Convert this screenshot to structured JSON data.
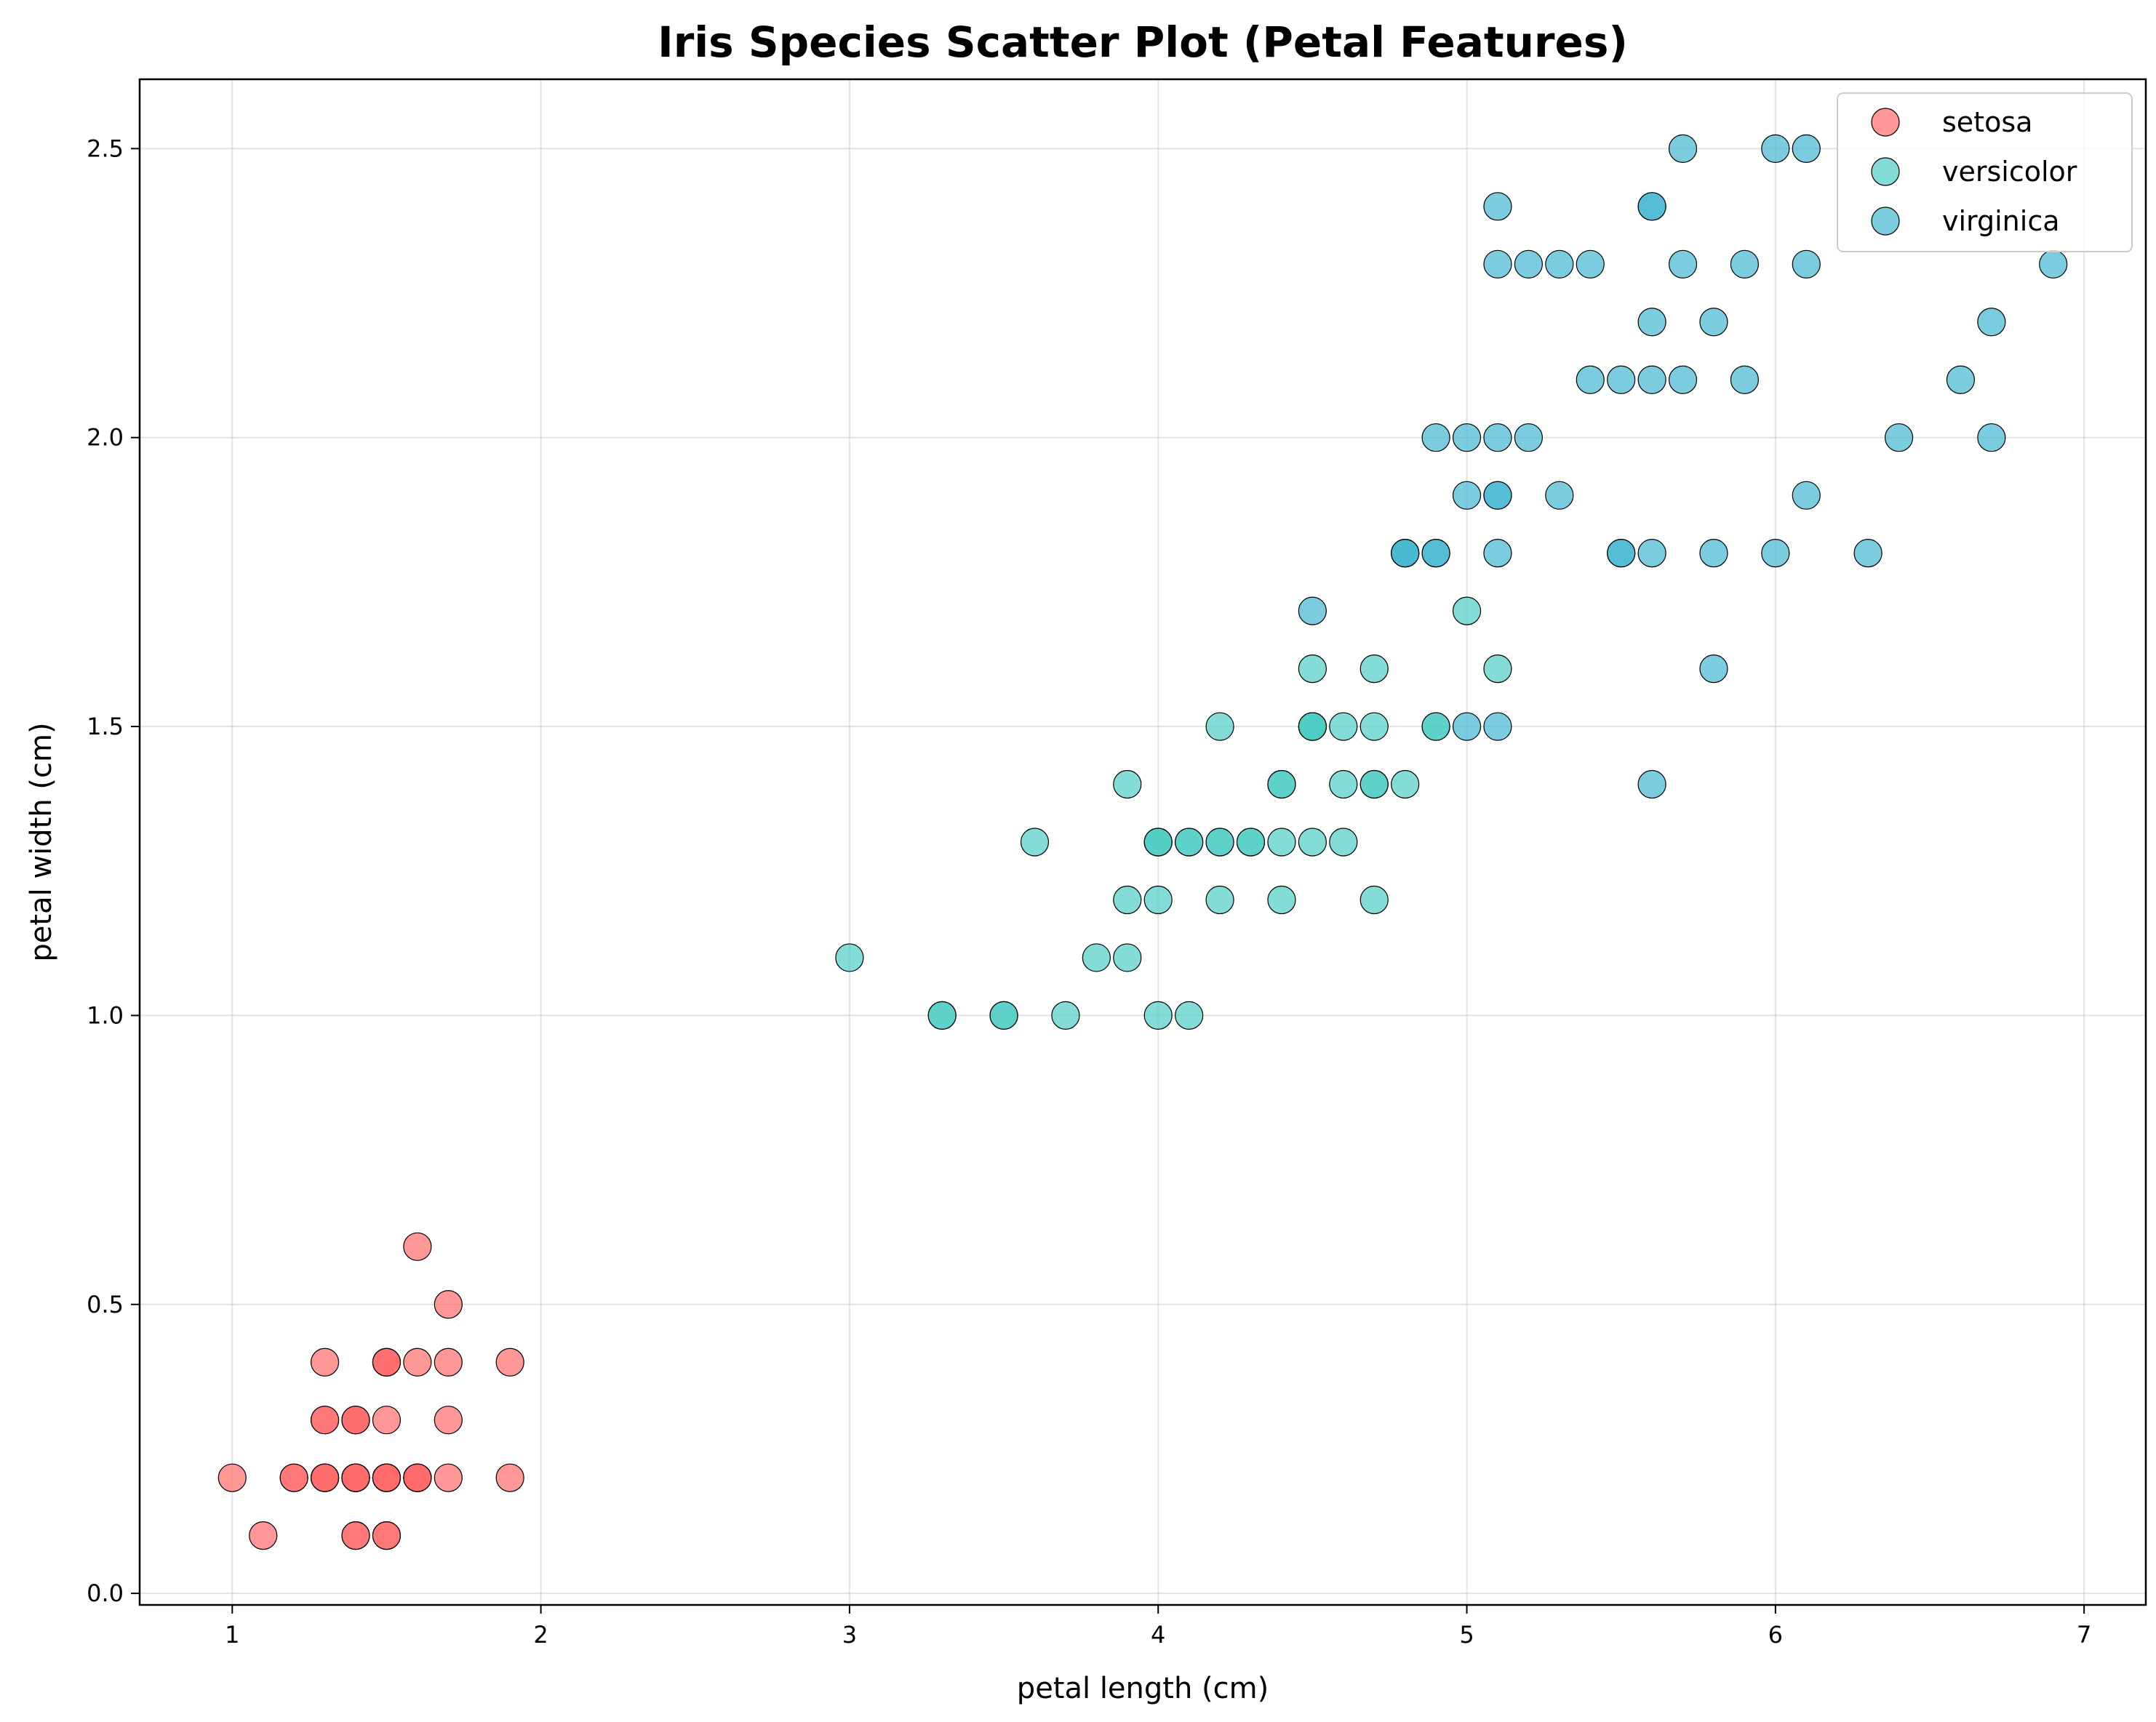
{
  "chart_data": {
    "type": "scatter",
    "title": "Iris Species Scatter Plot (Petal Features)",
    "xlabel": "petal length (cm)",
    "ylabel": "petal width (cm)",
    "xlim": [
      0.7,
      7.2
    ],
    "ylim": [
      -0.02,
      2.62
    ],
    "xticks": [
      1,
      2,
      3,
      4,
      5,
      6,
      7
    ],
    "xtick_labels": [
      "1",
      "2",
      "3",
      "4",
      "5",
      "6",
      "7"
    ],
    "yticks": [
      0.0,
      0.5,
      1.0,
      1.5,
      2.0,
      2.5
    ],
    "ytick_labels": [
      "0.0",
      "0.5",
      "1.0",
      "1.5",
      "2.0",
      "2.5"
    ],
    "grid": true,
    "legend_position": "top-right",
    "series": [
      {
        "name": "setosa",
        "color": "#ff6b6b",
        "points": [
          [
            1.4,
            0.2
          ],
          [
            1.4,
            0.2
          ],
          [
            1.3,
            0.2
          ],
          [
            1.5,
            0.2
          ],
          [
            1.4,
            0.2
          ],
          [
            1.7,
            0.4
          ],
          [
            1.4,
            0.3
          ],
          [
            1.5,
            0.2
          ],
          [
            1.4,
            0.2
          ],
          [
            1.5,
            0.1
          ],
          [
            1.5,
            0.2
          ],
          [
            1.6,
            0.2
          ],
          [
            1.4,
            0.1
          ],
          [
            1.1,
            0.1
          ],
          [
            1.2,
            0.2
          ],
          [
            1.5,
            0.4
          ],
          [
            1.3,
            0.4
          ],
          [
            1.4,
            0.3
          ],
          [
            1.7,
            0.3
          ],
          [
            1.5,
            0.3
          ],
          [
            1.7,
            0.2
          ],
          [
            1.5,
            0.4
          ],
          [
            1.0,
            0.2
          ],
          [
            1.7,
            0.5
          ],
          [
            1.9,
            0.2
          ],
          [
            1.6,
            0.2
          ],
          [
            1.6,
            0.4
          ],
          [
            1.5,
            0.2
          ],
          [
            1.4,
            0.2
          ],
          [
            1.6,
            0.2
          ],
          [
            1.6,
            0.2
          ],
          [
            1.5,
            0.4
          ],
          [
            1.5,
            0.1
          ],
          [
            1.4,
            0.2
          ],
          [
            1.5,
            0.2
          ],
          [
            1.2,
            0.2
          ],
          [
            1.3,
            0.2
          ],
          [
            1.4,
            0.1
          ],
          [
            1.3,
            0.2
          ],
          [
            1.5,
            0.2
          ],
          [
            1.3,
            0.3
          ],
          [
            1.3,
            0.3
          ],
          [
            1.3,
            0.2
          ],
          [
            1.6,
            0.6
          ],
          [
            1.9,
            0.4
          ],
          [
            1.4,
            0.3
          ],
          [
            1.6,
            0.2
          ],
          [
            1.4,
            0.2
          ],
          [
            1.5,
            0.2
          ],
          [
            1.4,
            0.2
          ]
        ]
      },
      {
        "name": "versicolor",
        "color": "#4ecdc4",
        "points": [
          [
            4.7,
            1.4
          ],
          [
            4.5,
            1.5
          ],
          [
            4.9,
            1.5
          ],
          [
            4.0,
            1.3
          ],
          [
            4.6,
            1.5
          ],
          [
            4.5,
            1.3
          ],
          [
            4.7,
            1.6
          ],
          [
            3.3,
            1.0
          ],
          [
            4.6,
            1.3
          ],
          [
            3.9,
            1.4
          ],
          [
            3.5,
            1.0
          ],
          [
            4.2,
            1.5
          ],
          [
            4.0,
            1.0
          ],
          [
            4.7,
            1.4
          ],
          [
            3.6,
            1.3
          ],
          [
            4.4,
            1.4
          ],
          [
            4.5,
            1.5
          ],
          [
            4.1,
            1.0
          ],
          [
            4.5,
            1.5
          ],
          [
            3.9,
            1.1
          ],
          [
            4.8,
            1.8
          ],
          [
            4.0,
            1.3
          ],
          [
            4.9,
            1.5
          ],
          [
            4.7,
            1.2
          ],
          [
            4.3,
            1.3
          ],
          [
            4.4,
            1.4
          ],
          [
            4.8,
            1.4
          ],
          [
            5.0,
            1.7
          ],
          [
            4.5,
            1.5
          ],
          [
            3.5,
            1.0
          ],
          [
            3.8,
            1.1
          ],
          [
            3.7,
            1.0
          ],
          [
            3.9,
            1.2
          ],
          [
            5.1,
            1.6
          ],
          [
            4.5,
            1.5
          ],
          [
            4.5,
            1.6
          ],
          [
            4.7,
            1.5
          ],
          [
            4.4,
            1.3
          ],
          [
            4.1,
            1.3
          ],
          [
            4.0,
            1.3
          ],
          [
            4.4,
            1.2
          ],
          [
            4.6,
            1.4
          ],
          [
            4.0,
            1.2
          ],
          [
            3.3,
            1.0
          ],
          [
            4.2,
            1.3
          ],
          [
            4.2,
            1.2
          ],
          [
            4.2,
            1.3
          ],
          [
            4.3,
            1.3
          ],
          [
            3.0,
            1.1
          ],
          [
            4.1,
            1.3
          ]
        ]
      },
      {
        "name": "virginica",
        "color": "#45b7d1",
        "points": [
          [
            6.0,
            2.5
          ],
          [
            5.1,
            1.9
          ],
          [
            5.9,
            2.1
          ],
          [
            5.6,
            1.8
          ],
          [
            5.8,
            2.2
          ],
          [
            6.6,
            2.1
          ],
          [
            4.5,
            1.7
          ],
          [
            6.3,
            1.8
          ],
          [
            5.8,
            1.8
          ],
          [
            6.1,
            2.5
          ],
          [
            5.1,
            2.0
          ],
          [
            5.3,
            1.9
          ],
          [
            5.5,
            2.1
          ],
          [
            5.0,
            2.0
          ],
          [
            5.1,
            2.4
          ],
          [
            5.3,
            2.3
          ],
          [
            5.5,
            1.8
          ],
          [
            6.7,
            2.2
          ],
          [
            6.9,
            2.3
          ],
          [
            5.0,
            1.5
          ],
          [
            5.7,
            2.3
          ],
          [
            4.9,
            2.0
          ],
          [
            6.7,
            2.0
          ],
          [
            4.9,
            1.8
          ],
          [
            5.7,
            2.1
          ],
          [
            6.0,
            1.8
          ],
          [
            4.8,
            1.8
          ],
          [
            4.9,
            1.8
          ],
          [
            5.6,
            2.1
          ],
          [
            5.8,
            1.6
          ],
          [
            6.1,
            1.9
          ],
          [
            6.4,
            2.0
          ],
          [
            5.6,
            2.2
          ],
          [
            5.1,
            1.5
          ],
          [
            5.6,
            1.4
          ],
          [
            6.1,
            2.3
          ],
          [
            5.6,
            2.4
          ],
          [
            5.5,
            1.8
          ],
          [
            4.8,
            1.8
          ],
          [
            5.4,
            2.1
          ],
          [
            5.6,
            2.4
          ],
          [
            5.1,
            2.3
          ],
          [
            5.1,
            1.9
          ],
          [
            5.9,
            2.3
          ],
          [
            5.7,
            2.5
          ],
          [
            5.2,
            2.3
          ],
          [
            5.0,
            1.9
          ],
          [
            5.2,
            2.0
          ],
          [
            5.4,
            2.3
          ],
          [
            5.1,
            1.8
          ]
        ]
      }
    ]
  }
}
